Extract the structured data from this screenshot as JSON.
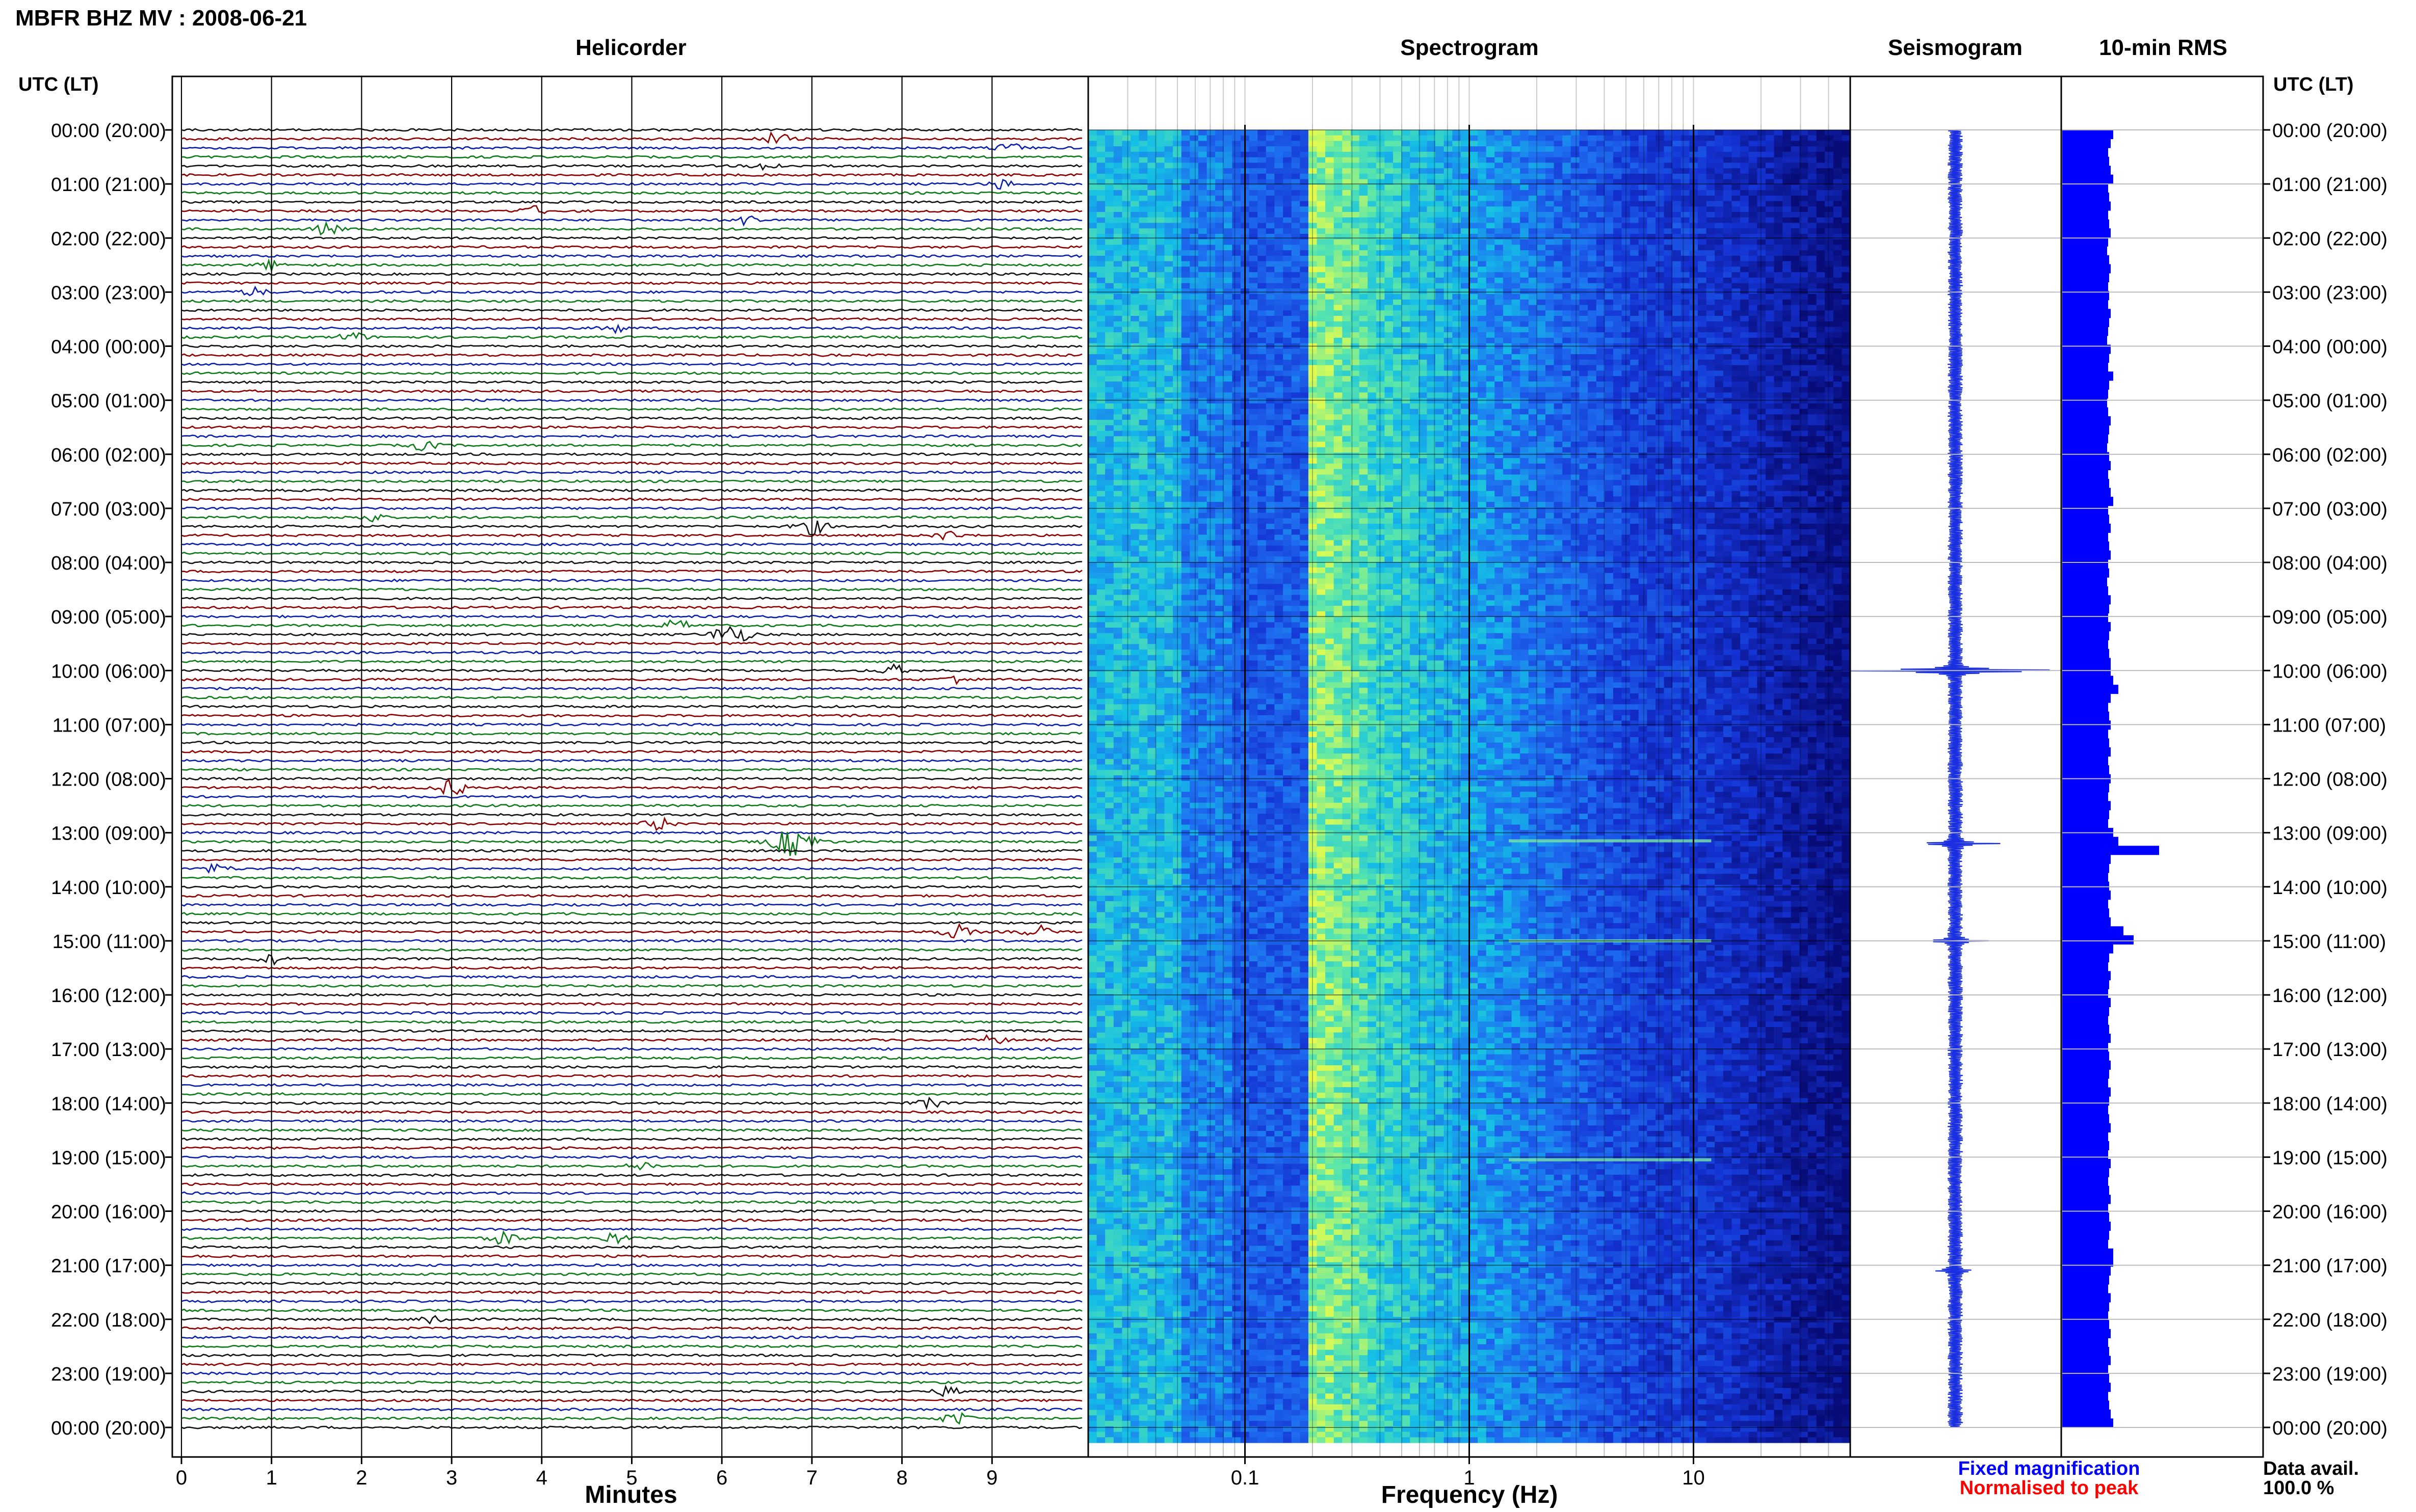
{
  "header": {
    "title": "MBFR BHZ MV : 2008-06-21"
  },
  "panels": {
    "helicorder": "Helicorder",
    "spectrogram": "Spectrogram",
    "seismogram": "Seismogram",
    "rms": "10-min RMS"
  },
  "axes": {
    "left_label": "UTC (LT)",
    "right_label": "UTC (LT)",
    "minutes_label": "Minutes",
    "frequency_label": "Frequency (Hz)"
  },
  "legend": {
    "fixed": "Fixed magnification",
    "normalised": "Normalised to peak",
    "fixed_color": "#0000ff",
    "normalised_color": "#ff0000"
  },
  "data_avail": {
    "label": "Data avail.",
    "value": "100.0 %"
  },
  "colors": {
    "trace_black": "#111111",
    "trace_red": "#8b0000",
    "trace_blue": "#0a1fa8",
    "trace_green": "#0f7a1a",
    "rms_fill": "#0000ff",
    "seismo_fill": "#1a2fe0"
  },
  "chart_data": [
    {
      "type": "line",
      "title": "Helicorder",
      "xlabel": "Minutes",
      "xlim": [
        0,
        10
      ],
      "x_ticks": [
        "0",
        "1",
        "2",
        "3",
        "4",
        "5",
        "6",
        "7",
        "8",
        "9"
      ],
      "rows_per_hour": 6,
      "y_labels": [
        "00:00 (20:00)",
        "01:00 (21:00)",
        "02:00 (22:00)",
        "03:00 (23:00)",
        "04:00 (00:00)",
        "05:00 (01:00)",
        "06:00 (02:00)",
        "07:00 (03:00)",
        "08:00 (04:00)",
        "09:00 (05:00)",
        "10:00 (06:00)",
        "11:00 (07:00)",
        "12:00 (08:00)",
        "13:00 (09:00)",
        "14:00 (10:00)",
        "15:00 (11:00)",
        "16:00 (12:00)",
        "17:00 (13:00)",
        "18:00 (14:00)",
        "19:00 (15:00)",
        "20:00 (16:00)",
        "21:00 (17:00)",
        "22:00 (18:00)",
        "23:00 (19:00)",
        "00:00 (20:00)"
      ],
      "trace_color_cycle": [
        "black",
        "red",
        "blue",
        "green"
      ],
      "events": [
        {
          "row": 1,
          "minute": 6.6,
          "size": 1.3
        },
        {
          "row": 2,
          "minute": 9.2,
          "size": 1.0
        },
        {
          "row": 4,
          "minute": 6.5,
          "size": 1.0
        },
        {
          "row": 6,
          "minute": 9.1,
          "size": 1.0
        },
        {
          "row": 9,
          "minute": 3.9,
          "size": 1.0
        },
        {
          "row": 10,
          "minute": 6.3,
          "size": 1.1
        },
        {
          "row": 11,
          "minute": 1.6,
          "size": 1.2
        },
        {
          "row": 15,
          "minute": 1.0,
          "size": 1.0
        },
        {
          "row": 18,
          "minute": 0.8,
          "size": 1.0
        },
        {
          "row": 22,
          "minute": 4.8,
          "size": 1.0
        },
        {
          "row": 23,
          "minute": 1.9,
          "size": 1.1
        },
        {
          "row": 35,
          "minute": 2.7,
          "size": 1.1
        },
        {
          "row": 43,
          "minute": 2.1,
          "size": 1.0
        },
        {
          "row": 44,
          "minute": 7.0,
          "size": 1.6
        },
        {
          "row": 45,
          "minute": 8.5,
          "size": 1.0
        },
        {
          "row": 55,
          "minute": 5.5,
          "size": 1.2
        },
        {
          "row": 56,
          "minute": 6.1,
          "size": 2.2
        },
        {
          "row": 60,
          "minute": 7.9,
          "size": 1.1
        },
        {
          "row": 61,
          "minute": 8.6,
          "size": 1.0
        },
        {
          "row": 73,
          "minute": 3.0,
          "size": 1.6
        },
        {
          "row": 77,
          "minute": 5.3,
          "size": 1.3
        },
        {
          "row": 79,
          "minute": 6.8,
          "size": 3.0
        },
        {
          "row": 82,
          "minute": 0.4,
          "size": 1.0
        },
        {
          "row": 89,
          "minute": 8.6,
          "size": 1.5
        },
        {
          "row": 89,
          "minute": 9.5,
          "size": 1.3
        },
        {
          "row": 92,
          "minute": 1.0,
          "size": 1.0
        },
        {
          "row": 101,
          "minute": 9.0,
          "size": 1.0
        },
        {
          "row": 108,
          "minute": 8.3,
          "size": 1.0
        },
        {
          "row": 115,
          "minute": 5.1,
          "size": 1.0
        },
        {
          "row": 123,
          "minute": 3.6,
          "size": 1.4
        },
        {
          "row": 123,
          "minute": 4.8,
          "size": 1.2
        },
        {
          "row": 132,
          "minute": 2.8,
          "size": 1.2
        },
        {
          "row": 140,
          "minute": 8.5,
          "size": 1.0
        },
        {
          "row": 143,
          "minute": 8.6,
          "size": 1.3
        }
      ]
    },
    {
      "type": "heatmap",
      "title": "Spectrogram",
      "xlabel": "Frequency (Hz)",
      "x_scale": "log",
      "xlim": [
        0.02,
        50
      ],
      "x_ticks": [
        "0.1",
        "1",
        "10"
      ]
    },
    {
      "type": "line",
      "title": "Seismogram",
      "events": [
        {
          "hour": 10.0,
          "amplitude": 1.0
        },
        {
          "hour": 13.2,
          "amplitude": 0.3
        },
        {
          "hour": 15.0,
          "amplitude": 0.2
        },
        {
          "hour": 21.1,
          "amplitude": 0.12
        }
      ]
    },
    {
      "type": "bar",
      "title": "10-min RMS",
      "orientation": "horizontal",
      "hours_range": [
        0,
        24
      ],
      "values": [
        1.0,
        0.95,
        0.9,
        0.92,
        0.95,
        1.0,
        0.9,
        0.92,
        0.95,
        0.9,
        0.92,
        0.95,
        0.9,
        0.88,
        0.92,
        0.95,
        0.92,
        0.9,
        0.92,
        0.9,
        0.95,
        0.92,
        0.9,
        0.88,
        0.95,
        0.92,
        0.9,
        1.0,
        0.92,
        0.9,
        0.88,
        0.9,
        0.95,
        0.92,
        0.9,
        0.88,
        0.92,
        0.95,
        0.9,
        0.92,
        0.95,
        1.0,
        0.9,
        0.92,
        0.95,
        0.9,
        0.92,
        0.95,
        0.9,
        0.92,
        0.88,
        0.9,
        0.95,
        0.92,
        0.9,
        0.95,
        0.92,
        0.9,
        0.92,
        0.95,
        0.95,
        1.0,
        1.1,
        0.95,
        0.9,
        0.92,
        0.95,
        0.9,
        0.92,
        0.95,
        0.9,
        0.92,
        0.95,
        0.92,
        0.9,
        0.95,
        0.92,
        0.9,
        1.0,
        1.1,
        1.9,
        0.95,
        0.92,
        0.9,
        0.92,
        0.95,
        0.9,
        0.92,
        0.95,
        1.2,
        1.4,
        1.0,
        0.92,
        0.9,
        0.95,
        0.92,
        0.9,
        0.95,
        0.92,
        0.9,
        0.92,
        0.95,
        0.9,
        0.92,
        0.95,
        0.92,
        0.9,
        0.95,
        0.92,
        0.9,
        0.92,
        0.95,
        0.9,
        0.92,
        0.9,
        0.95,
        0.92,
        0.9,
        0.92,
        0.95,
        0.9,
        0.92,
        0.95,
        0.92,
        0.9,
        1.0,
        1.0,
        0.95,
        0.92,
        0.9,
        0.95,
        0.92,
        0.9,
        0.92,
        0.95,
        0.9,
        0.92,
        0.95,
        0.9,
        0.92,
        0.95,
        0.9,
        0.92,
        0.95,
        1.0
      ]
    }
  ]
}
